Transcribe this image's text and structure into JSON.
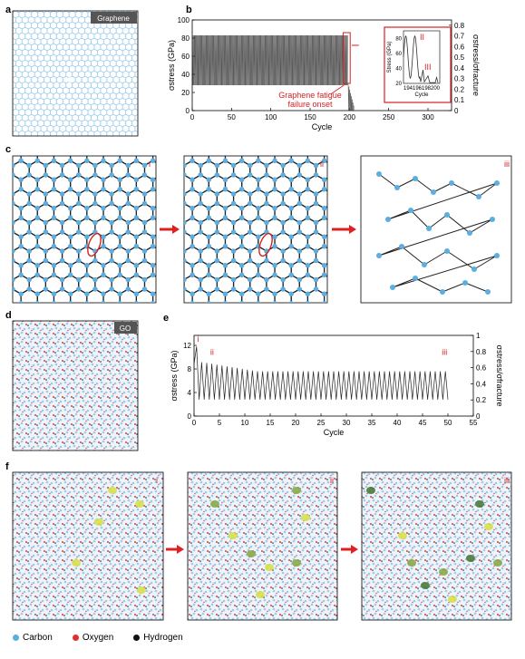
{
  "panels": {
    "a": {
      "label": "a",
      "tag": "Graphene"
    },
    "b": {
      "label": "b"
    },
    "c": {
      "label": "c",
      "frames": [
        "i",
        "ii",
        "iii"
      ]
    },
    "d": {
      "label": "d",
      "tag": "GO"
    },
    "e": {
      "label": "e"
    },
    "f": {
      "label": "f",
      "frames": [
        "i",
        "ii",
        "iii"
      ]
    }
  },
  "legend": [
    {
      "label": "Carbon",
      "color": "#5aaee0"
    },
    {
      "label": "Oxygen",
      "color": "#e03030"
    },
    {
      "label": "Hydrogen",
      "color": "#111111"
    }
  ],
  "chart_data": [
    {
      "id": "b",
      "type": "line",
      "xlabel": "Cycle",
      "ylabel": "σstress (GPa)",
      "ylabel_right": "σstress/σfracture",
      "xlim": [
        0,
        330
      ],
      "ylim": [
        0,
        100
      ],
      "ylim_right": [
        0,
        0.85
      ],
      "xticks": [
        0,
        50,
        100,
        150,
        200,
        250,
        300
      ],
      "yticks": [
        0,
        20,
        40,
        60,
        80,
        100
      ],
      "yticks_right": [
        0,
        0.1,
        0.2,
        0.3,
        0.4,
        0.5,
        0.6,
        0.7,
        0.8
      ],
      "series": [
        {
          "min_stress": 28,
          "max_stress": 83,
          "cycles_to_failure": 198
        }
      ],
      "annotation": "Graphene fatigue failure onset",
      "inset": {
        "xlabel": "Cycle",
        "ylabel": "Stress (GPa)",
        "xlim": [
          193,
          201
        ],
        "ylim": [
          20,
          90
        ],
        "xticks": [
          194,
          196,
          198,
          200
        ],
        "yticks": [
          20,
          40,
          60,
          80
        ],
        "marks": [
          "II",
          "III"
        ]
      }
    },
    {
      "id": "e",
      "type": "line",
      "xlabel": "Cycle",
      "ylabel": "σstress (GPa)",
      "ylabel_right": "σstress/σfracture",
      "xlim": [
        0,
        55
      ],
      "ylim": [
        0,
        13.7
      ],
      "ylim_right": [
        0,
        1.0
      ],
      "xticks": [
        0,
        5,
        10,
        15,
        20,
        25,
        30,
        35,
        40,
        45,
        50,
        55
      ],
      "yticks": [
        0,
        4,
        8,
        12
      ],
      "yticks_right": [
        0,
        0.2,
        0.4,
        0.6,
        0.8,
        1.0
      ],
      "series": [
        {
          "initial_peak": 11.8,
          "peak_max": 9.3,
          "peak_min": 7.6,
          "trough": 2.8,
          "cycles": 50
        }
      ],
      "marks": [
        "i",
        "ii",
        "iii"
      ]
    }
  ]
}
